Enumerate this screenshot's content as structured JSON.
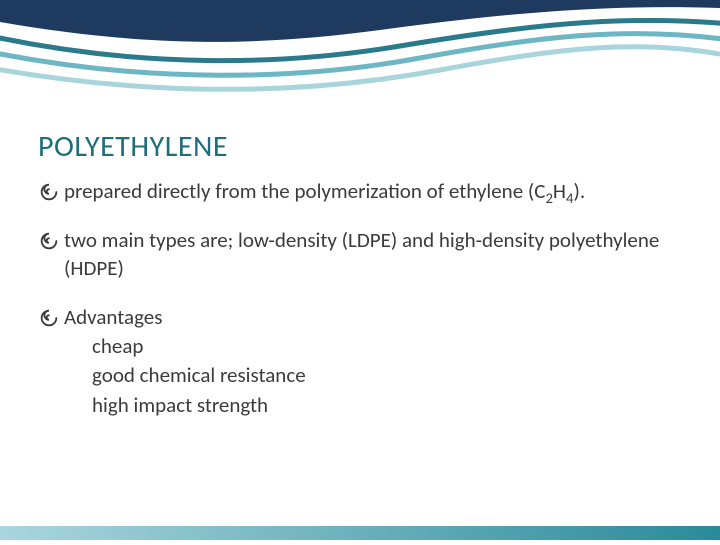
{
  "slide": {
    "title": "POLYETHYLENE",
    "title_color": "#1f6e7a",
    "title_fontsize": 30,
    "body_color": "#3b3b3b",
    "body_fontsize": 21,
    "bullets": [
      {
        "text_html": "prepared directly from the polymerization of ethylene (C<sub>2</sub>H<sub>4</sub>)."
      },
      {
        "text_html": "two main types are; low-density (LDPE) and high-density polyethylene (HDPE)"
      },
      {
        "text_html": "Advantages",
        "sub": [
          "cheap",
          "good chemical resistance",
          "high impact strength"
        ]
      }
    ],
    "bullet_icon_color": "#3b3b3b"
  },
  "wave": {
    "top_fill": "#1f3a5f",
    "stroke1": "#2a7a8c",
    "stroke2": "#6db6c4",
    "stroke3": "#a8d4dc"
  },
  "footer": {
    "color_left": "#aad6de",
    "color_right": "#2a8a9a"
  }
}
